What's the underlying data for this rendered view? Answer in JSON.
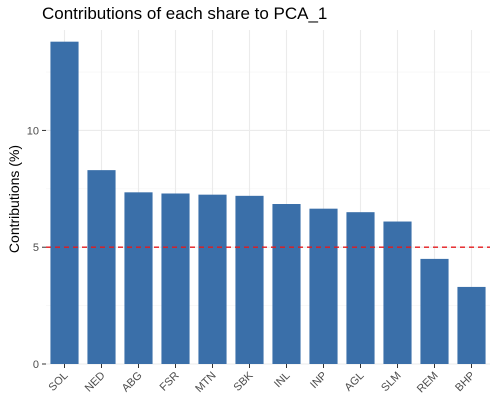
{
  "chart_data": {
    "type": "bar",
    "title": "Contributions of each share to PCA_1",
    "xlabel": "",
    "ylabel": "Contributions (%)",
    "categories": [
      "SOL",
      "NED",
      "ABG",
      "FSR",
      "MTN",
      "SBK",
      "INL",
      "INP",
      "AGL",
      "SLM",
      "REM",
      "BHP"
    ],
    "values": [
      13.8,
      8.3,
      7.35,
      7.3,
      7.25,
      7.2,
      6.85,
      6.65,
      6.5,
      6.1,
      4.5,
      3.3
    ],
    "ylim": [
      0,
      14.3
    ],
    "yticks": [
      0,
      5,
      10
    ],
    "ytick_labels": [
      "0",
      "5",
      "10"
    ],
    "reference_line": {
      "value": 5,
      "style": "dashed",
      "color": "#e41a1c"
    },
    "bar_color": "#3a6fa9",
    "grid": true,
    "legend": "none"
  }
}
